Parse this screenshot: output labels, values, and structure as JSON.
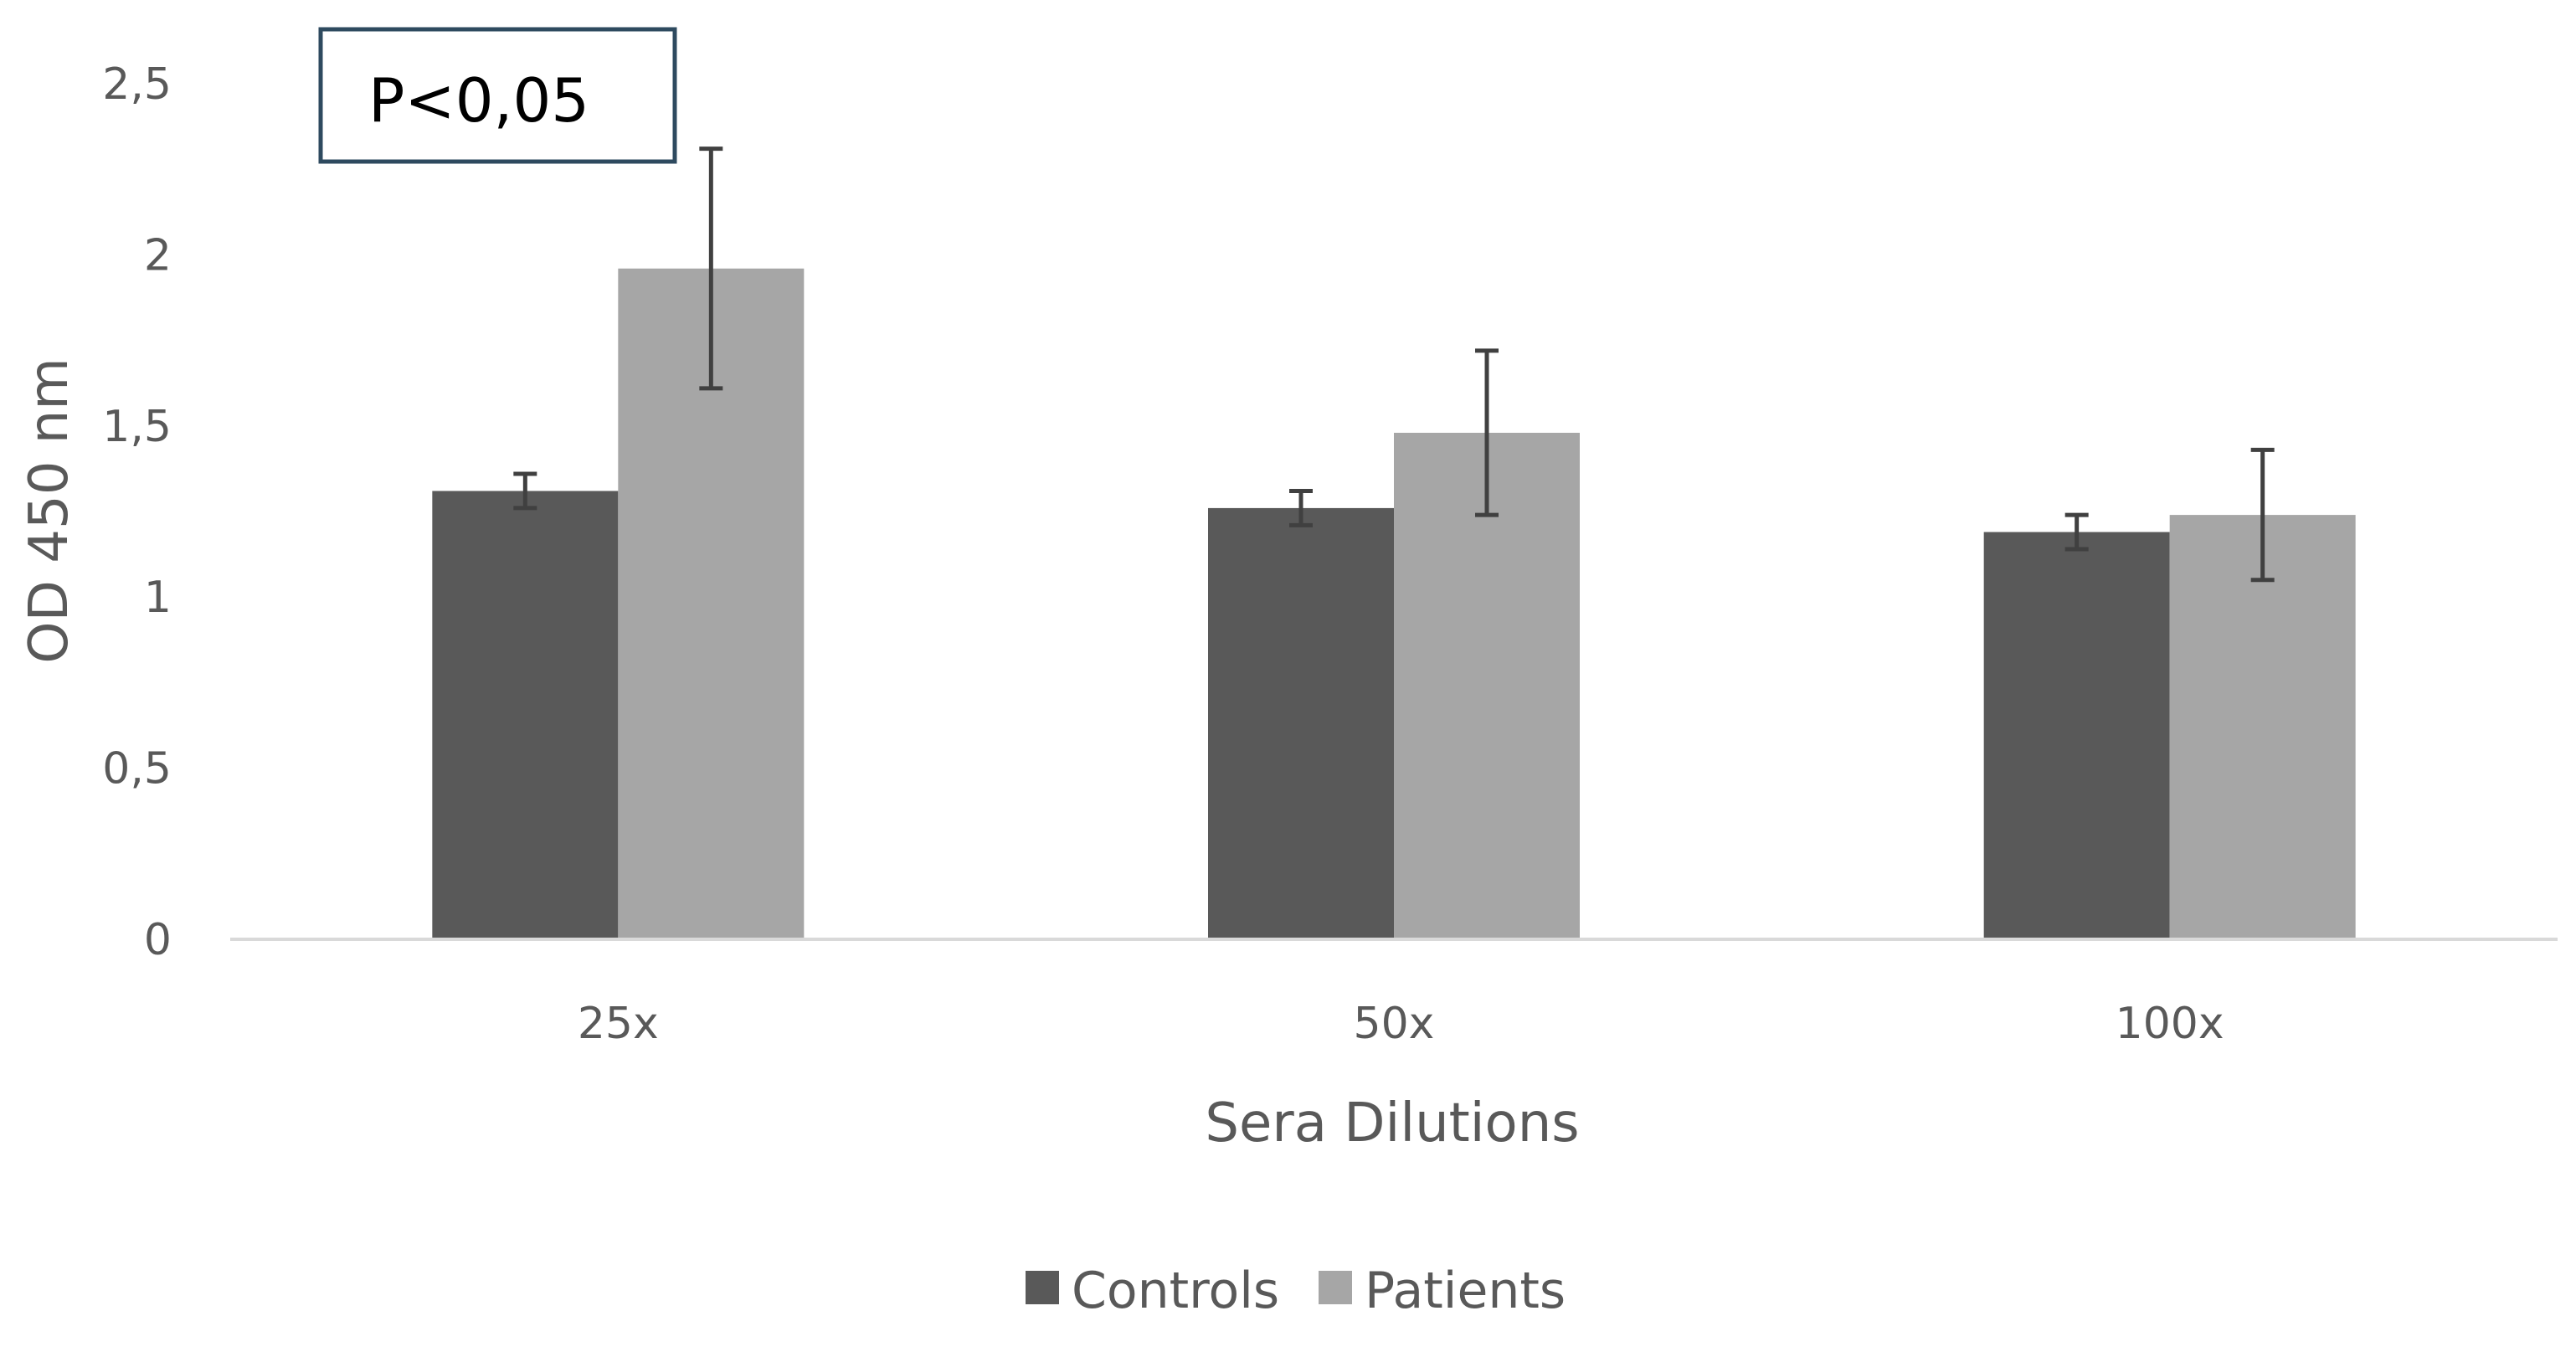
{
  "chart_data": {
    "type": "bar",
    "categories": [
      "25x",
      "50x",
      "100x"
    ],
    "series": [
      {
        "name": "Controls",
        "values": [
          1.31,
          1.26,
          1.19
        ],
        "errors": [
          0.05,
          0.05,
          0.05
        ],
        "color": "#595959"
      },
      {
        "name": "Patients",
        "values": [
          1.96,
          1.48,
          1.24
        ],
        "errors": [
          0.35,
          0.24,
          0.19
        ],
        "color": "#a6a6a6"
      }
    ],
    "title": "",
    "xlabel": "Sera Dilutions",
    "ylabel": "OD 450 nm",
    "ylim": [
      0,
      2.5
    ],
    "yticks": [
      0,
      0.5,
      1,
      1.5,
      2,
      2.5
    ],
    "ytick_labels": [
      "0",
      "0,5",
      "1",
      "1,5",
      "2",
      "2,5"
    ],
    "annotation": "P<0,05",
    "legend_position": "bottom-center",
    "grid": false
  }
}
